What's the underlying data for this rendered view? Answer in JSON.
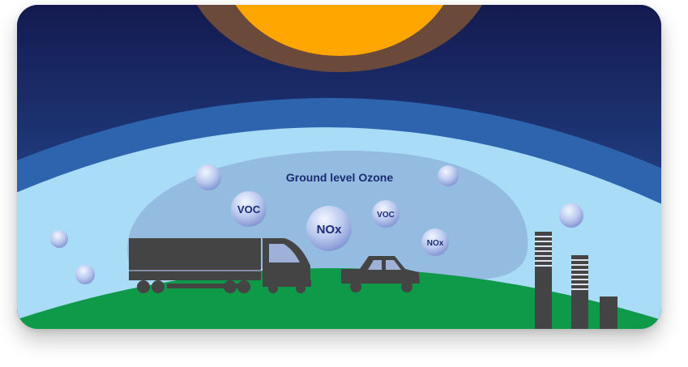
{
  "diagram": {
    "title": "Ground level Ozone",
    "bubbles": {
      "voc_large": "VOC",
      "nox_large": "NOx",
      "voc_small": "VOC",
      "nox_small": "NOx"
    },
    "colors": {
      "sky_top": "#141a4f",
      "sky_bottom": "#2a5aa8",
      "atmosphere_band": "#2e63ad",
      "lower_air": "#a9dcf7",
      "smog_dome": "#8fb4dc",
      "sun": "#ffa600",
      "sun_halo": "#6b4a3c",
      "ground": "#0f9a4a",
      "vehicles_factory": "#444444",
      "text": "#1b2a72"
    },
    "icons": {
      "sun": "sun-icon",
      "truck": "truck-icon",
      "car": "car-icon",
      "factory": "factory-smokestacks-icon"
    }
  }
}
